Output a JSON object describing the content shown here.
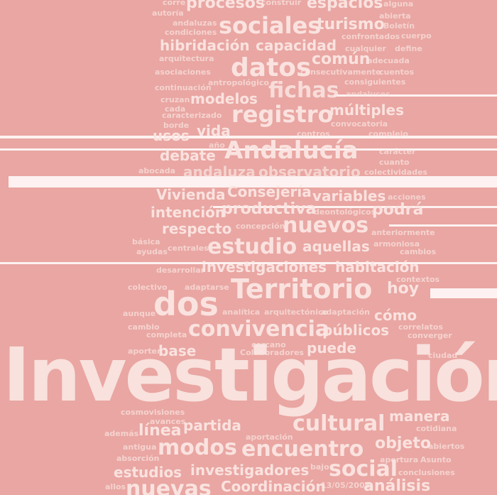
{
  "words": [
    "corre",
    "procesos",
    "construir",
    "espacios",
    "alguna",
    "autoría",
    "abierta",
    "andaluzas",
    "sociales",
    "turismo",
    "Boletín",
    "condiciones",
    "confrontados",
    "cuerpo",
    "hibridación",
    "capacidad",
    "cualquier",
    "define",
    "arquitectura",
    "común",
    "adecuada",
    "asociaciones",
    "datos",
    "consecutivamente",
    "cuentos",
    "antropológico",
    "consiguientes",
    "continuación",
    "fichas",
    "andaluces",
    "cruzan",
    "modelos",
    "cada",
    "registro",
    "múltiples",
    "caracterizado",
    "borde",
    "convocatoria",
    "usos",
    "vida",
    "contros",
    "complejo",
    "año",
    "Andalucía",
    "carácter",
    "debate",
    "cuanto",
    "abocada",
    "andaluza",
    "observatorio",
    "colectividades",
    "Vivienda",
    "Consejería",
    "variables",
    "acciones",
    "intención",
    "productiva",
    "deontológicos",
    "podrá",
    "respecto",
    "concepción",
    "nuevos",
    "anteriormente",
    "básica",
    "centrales",
    "estudio",
    "aquellas",
    "armoniosa",
    "ayudas",
    "cambios",
    "desarrollar",
    "investigaciones",
    "habitación",
    "contextos",
    "colectivo",
    "adaptarse",
    "Territorio",
    "hoy",
    "dos",
    "aunque",
    "analítica",
    "arquitectónico",
    "adaptación",
    "cómo",
    "cambio",
    "convivencia",
    "públicos",
    "correlatos",
    "completa",
    "converger",
    "cercano",
    "aporter",
    "base",
    "Colaboradores",
    "puede",
    "ciudad",
    "Investigación",
    "cosmovisiones",
    "avances",
    "además",
    "línea",
    "partida",
    "cultural",
    "manera",
    "cotidiana",
    "aportación",
    "antigua",
    "modos",
    "encuentro",
    "objeto",
    "abiertos",
    "absorción",
    "apertura",
    "Asunto",
    "estudios",
    "investigadores",
    "bajo",
    "social",
    "conclusiones",
    "allos",
    "nuevas",
    "Coordinación",
    "13/05/2008",
    "análisis"
  ]
}
